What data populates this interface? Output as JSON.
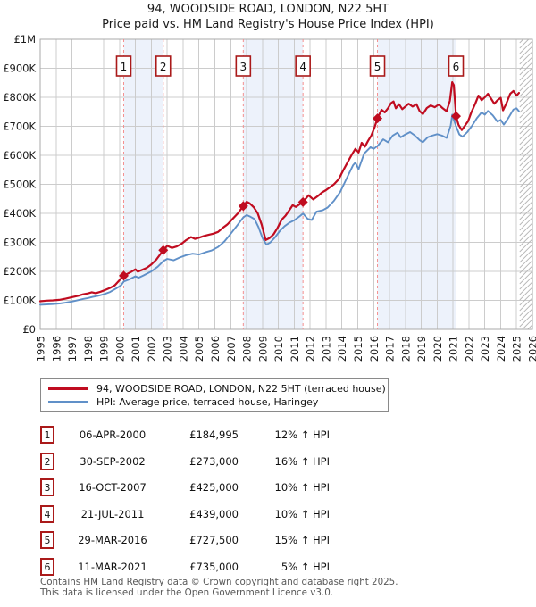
{
  "header": {
    "title": "94, WOODSIDE ROAD, LONDON, N22 5HT",
    "subtitle": "Price paid vs. HM Land Registry's House Price Index (HPI)"
  },
  "legend": {
    "entries": [
      {
        "label": "94, WOODSIDE ROAD, LONDON, N22 5HT (terraced house)",
        "color": "#c00c20"
      },
      {
        "label": "HPI: Average price, terraced house, Haringey",
        "color": "#6090c8"
      }
    ]
  },
  "footer": {
    "line1": "Contains HM Land Registry data © Crown copyright and database right 2025.",
    "line2": "This data is licensed under the Open Government Licence v3.0."
  },
  "chart_data": {
    "type": "line",
    "x_range": [
      1995,
      2026
    ],
    "ylim": [
      0,
      1000000
    ],
    "grid": true,
    "legend_position": "bottom",
    "y_ticks": [
      {
        "value": 0,
        "label": "£0"
      },
      {
        "value": 100000,
        "label": "£100K"
      },
      {
        "value": 200000,
        "label": "£200K"
      },
      {
        "value": 300000,
        "label": "£300K"
      },
      {
        "value": 400000,
        "label": "£400K"
      },
      {
        "value": 500000,
        "label": "£500K"
      },
      {
        "value": 600000,
        "label": "£600K"
      },
      {
        "value": 700000,
        "label": "£700K"
      },
      {
        "value": 800000,
        "label": "£800K"
      },
      {
        "value": 900000,
        "label": "£900K"
      },
      {
        "value": 1000000,
        "label": "£1M"
      }
    ],
    "x_ticks": [
      1995,
      1996,
      1997,
      1998,
      1999,
      2000,
      2001,
      2002,
      2003,
      2004,
      2005,
      2006,
      2007,
      2008,
      2009,
      2010,
      2011,
      2012,
      2013,
      2014,
      2015,
      2016,
      2017,
      2018,
      2019,
      2020,
      2021,
      2022,
      2023,
      2024,
      2025,
      2026
    ],
    "bands": [
      [
        2000.26,
        2002.75
      ],
      [
        2007.79,
        2011.55
      ],
      [
        2016.24,
        2021.19
      ]
    ],
    "future_start": 2025.2,
    "colors": {
      "red": "#c00c20",
      "blue": "#6090c8",
      "band": "#edf2fb",
      "grid": "#cccccc",
      "border": "#aaaaaa",
      "dashed": "#f49090",
      "hatch": "#b5b5b5",
      "box_border": "#aa1a1a",
      "text": "#1a1a1a"
    },
    "series": [
      {
        "name": "94, WOODSIDE ROAD, LONDON, N22 5HT (terraced house)",
        "color": "#c00c20",
        "points": [
          [
            1995.0,
            97000
          ],
          [
            1995.4,
            99000
          ],
          [
            1995.8,
            100000
          ],
          [
            1996.2,
            102000
          ],
          [
            1996.6,
            106000
          ],
          [
            1997.0,
            111000
          ],
          [
            1997.4,
            116000
          ],
          [
            1997.7,
            121000
          ],
          [
            1998.0,
            124000
          ],
          [
            1998.25,
            128000
          ],
          [
            1998.5,
            125000
          ],
          [
            1998.8,
            130000
          ],
          [
            1999.1,
            136000
          ],
          [
            1999.4,
            143000
          ],
          [
            1999.7,
            152000
          ],
          [
            2000.0,
            170000
          ],
          [
            2000.26,
            184995
          ],
          [
            2000.5,
            192000
          ],
          [
            2000.75,
            199000
          ],
          [
            2001.0,
            207000
          ],
          [
            2001.15,
            199000
          ],
          [
            2001.4,
            205000
          ],
          [
            2001.7,
            212000
          ],
          [
            2002.0,
            224000
          ],
          [
            2002.3,
            240000
          ],
          [
            2002.55,
            258000
          ],
          [
            2002.75,
            273000
          ],
          [
            2003.0,
            288000
          ],
          [
            2003.3,
            281000
          ],
          [
            2003.6,
            286000
          ],
          [
            2003.9,
            295000
          ],
          [
            2004.2,
            308000
          ],
          [
            2004.5,
            318000
          ],
          [
            2004.75,
            312000
          ],
          [
            2005.0,
            316000
          ],
          [
            2005.3,
            322000
          ],
          [
            2005.6,
            326000
          ],
          [
            2005.9,
            330000
          ],
          [
            2006.2,
            336000
          ],
          [
            2006.5,
            350000
          ],
          [
            2006.8,
            362000
          ],
          [
            2007.1,
            380000
          ],
          [
            2007.45,
            400000
          ],
          [
            2007.79,
            425000
          ],
          [
            2008.0,
            440000
          ],
          [
            2008.2,
            434000
          ],
          [
            2008.45,
            421000
          ],
          [
            2008.7,
            400000
          ],
          [
            2008.95,
            360000
          ],
          [
            2009.2,
            308000
          ],
          [
            2009.45,
            315000
          ],
          [
            2009.7,
            328000
          ],
          [
            2009.95,
            350000
          ],
          [
            2010.2,
            378000
          ],
          [
            2010.45,
            392000
          ],
          [
            2010.7,
            412000
          ],
          [
            2010.9,
            428000
          ],
          [
            2011.1,
            422000
          ],
          [
            2011.3,
            430000
          ],
          [
            2011.55,
            439000
          ],
          [
            2011.9,
            462000
          ],
          [
            2012.2,
            448000
          ],
          [
            2012.5,
            460000
          ],
          [
            2012.75,
            472000
          ],
          [
            2013.0,
            480000
          ],
          [
            2013.5,
            500000
          ],
          [
            2013.8,
            518000
          ],
          [
            2014.1,
            550000
          ],
          [
            2014.4,
            580000
          ],
          [
            2014.65,
            605000
          ],
          [
            2014.85,
            622000
          ],
          [
            2015.05,
            610000
          ],
          [
            2015.25,
            643000
          ],
          [
            2015.45,
            630000
          ],
          [
            2015.65,
            650000
          ],
          [
            2015.85,
            668000
          ],
          [
            2016.05,
            695000
          ],
          [
            2016.24,
            727500
          ],
          [
            2016.5,
            757000
          ],
          [
            2016.7,
            748000
          ],
          [
            2016.9,
            762000
          ],
          [
            2017.1,
            780000
          ],
          [
            2017.25,
            786000
          ],
          [
            2017.4,
            762000
          ],
          [
            2017.6,
            776000
          ],
          [
            2017.8,
            759000
          ],
          [
            2018.0,
            768000
          ],
          [
            2018.2,
            778000
          ],
          [
            2018.45,
            768000
          ],
          [
            2018.7,
            776000
          ],
          [
            2018.9,
            752000
          ],
          [
            2019.1,
            742000
          ],
          [
            2019.35,
            763000
          ],
          [
            2019.6,
            772000
          ],
          [
            2019.85,
            766000
          ],
          [
            2020.1,
            775000
          ],
          [
            2020.35,
            762000
          ],
          [
            2020.6,
            752000
          ],
          [
            2020.8,
            788000
          ],
          [
            2020.95,
            852000
          ],
          [
            2021.05,
            842000
          ],
          [
            2021.19,
            735000
          ],
          [
            2021.35,
            705000
          ],
          [
            2021.55,
            687000
          ],
          [
            2021.75,
            702000
          ],
          [
            2021.95,
            718000
          ],
          [
            2022.15,
            748000
          ],
          [
            2022.4,
            778000
          ],
          [
            2022.6,
            806000
          ],
          [
            2022.8,
            790000
          ],
          [
            2023.0,
            800000
          ],
          [
            2023.2,
            812000
          ],
          [
            2023.4,
            795000
          ],
          [
            2023.6,
            778000
          ],
          [
            2023.8,
            790000
          ],
          [
            2024.0,
            798000
          ],
          [
            2024.15,
            755000
          ],
          [
            2024.35,
            778000
          ],
          [
            2024.6,
            812000
          ],
          [
            2024.8,
            822000
          ],
          [
            2025.0,
            806000
          ],
          [
            2025.15,
            815000
          ]
        ]
      },
      {
        "name": "HPI: Average price, terraced house, Haringey",
        "color": "#6090c8",
        "points": [
          [
            1995.0,
            85000
          ],
          [
            1995.4,
            86000
          ],
          [
            1995.8,
            87000
          ],
          [
            1996.2,
            89000
          ],
          [
            1996.6,
            92000
          ],
          [
            1997.0,
            96000
          ],
          [
            1997.4,
            101000
          ],
          [
            1997.7,
            105000
          ],
          [
            1998.0,
            108000
          ],
          [
            1998.3,
            112000
          ],
          [
            1998.6,
            115000
          ],
          [
            1999.0,
            121000
          ],
          [
            1999.4,
            129000
          ],
          [
            1999.8,
            142000
          ],
          [
            2000.1,
            152000
          ],
          [
            2000.26,
            165000
          ],
          [
            2000.6,
            172000
          ],
          [
            2001.0,
            183000
          ],
          [
            2001.2,
            178000
          ],
          [
            2001.5,
            186000
          ],
          [
            2002.0,
            200000
          ],
          [
            2002.4,
            216000
          ],
          [
            2002.75,
            235000
          ],
          [
            2003.0,
            243000
          ],
          [
            2003.4,
            238000
          ],
          [
            2003.8,
            248000
          ],
          [
            2004.2,
            256000
          ],
          [
            2004.6,
            261000
          ],
          [
            2005.0,
            258000
          ],
          [
            2005.4,
            266000
          ],
          [
            2005.8,
            272000
          ],
          [
            2006.2,
            284000
          ],
          [
            2006.6,
            303000
          ],
          [
            2007.0,
            330000
          ],
          [
            2007.4,
            358000
          ],
          [
            2007.79,
            386000
          ],
          [
            2008.0,
            394000
          ],
          [
            2008.25,
            388000
          ],
          [
            2008.5,
            380000
          ],
          [
            2008.75,
            352000
          ],
          [
            2009.0,
            315000
          ],
          [
            2009.25,
            292000
          ],
          [
            2009.5,
            300000
          ],
          [
            2009.8,
            318000
          ],
          [
            2010.1,
            340000
          ],
          [
            2010.4,
            356000
          ],
          [
            2010.7,
            368000
          ],
          [
            2011.0,
            376000
          ],
          [
            2011.3,
            388000
          ],
          [
            2011.55,
            399000
          ],
          [
            2011.85,
            381000
          ],
          [
            2012.1,
            377000
          ],
          [
            2012.4,
            406000
          ],
          [
            2012.8,
            411000
          ],
          [
            2013.1,
            420000
          ],
          [
            2013.5,
            443000
          ],
          [
            2013.9,
            474000
          ],
          [
            2014.3,
            520000
          ],
          [
            2014.7,
            566000
          ],
          [
            2014.85,
            575000
          ],
          [
            2015.05,
            552000
          ],
          [
            2015.4,
            606000
          ],
          [
            2015.8,
            628000
          ],
          [
            2016.0,
            622000
          ],
          [
            2016.24,
            632000
          ],
          [
            2016.6,
            655000
          ],
          [
            2016.9,
            645000
          ],
          [
            2017.2,
            668000
          ],
          [
            2017.5,
            678000
          ],
          [
            2017.7,
            662000
          ],
          [
            2018.0,
            672000
          ],
          [
            2018.3,
            680000
          ],
          [
            2018.6,
            668000
          ],
          [
            2018.9,
            652000
          ],
          [
            2019.1,
            645000
          ],
          [
            2019.4,
            662000
          ],
          [
            2019.7,
            668000
          ],
          [
            2020.0,
            673000
          ],
          [
            2020.3,
            668000
          ],
          [
            2020.6,
            660000
          ],
          [
            2020.85,
            702000
          ],
          [
            2020.95,
            740000
          ],
          [
            2021.19,
            700000
          ],
          [
            2021.4,
            672000
          ],
          [
            2021.6,
            664000
          ],
          [
            2021.9,
            680000
          ],
          [
            2022.2,
            702000
          ],
          [
            2022.5,
            728000
          ],
          [
            2022.8,
            748000
          ],
          [
            2023.0,
            740000
          ],
          [
            2023.2,
            753000
          ],
          [
            2023.5,
            738000
          ],
          [
            2023.8,
            716000
          ],
          [
            2024.0,
            722000
          ],
          [
            2024.2,
            706000
          ],
          [
            2024.5,
            730000
          ],
          [
            2024.8,
            758000
          ],
          [
            2025.0,
            762000
          ],
          [
            2025.15,
            752000
          ]
        ]
      }
    ],
    "sales": [
      {
        "num": "1",
        "date": "06-APR-2000",
        "price_label": "£184,995",
        "hpi_label": "12% ↑ HPI",
        "year": 2000.26,
        "price": 184995
      },
      {
        "num": "2",
        "date": "30-SEP-2002",
        "price_label": "£273,000",
        "hpi_label": "16% ↑ HPI",
        "year": 2002.75,
        "price": 273000
      },
      {
        "num": "3",
        "date": "16-OCT-2007",
        "price_label": "£425,000",
        "hpi_label": "10% ↑ HPI",
        "year": 2007.79,
        "price": 425000
      },
      {
        "num": "4",
        "date": "21-JUL-2011",
        "price_label": "£439,000",
        "hpi_label": "10% ↑ HPI",
        "year": 2011.55,
        "price": 439000
      },
      {
        "num": "5",
        "date": "29-MAR-2016",
        "price_label": "£727,500",
        "hpi_label": "15% ↑ HPI",
        "year": 2016.24,
        "price": 727500
      },
      {
        "num": "6",
        "date": "11-MAR-2021",
        "price_label": "£735,000",
        "hpi_label": "5% ↑ HPI",
        "year": 2021.19,
        "price": 735000
      }
    ]
  }
}
